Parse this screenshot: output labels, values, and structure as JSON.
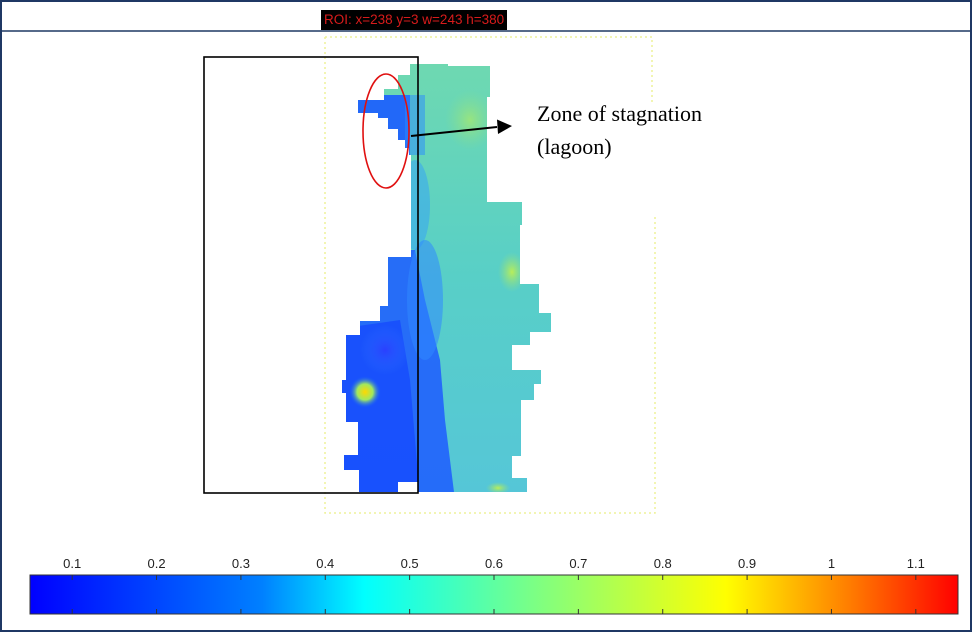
{
  "roi": {
    "label": "ROI: x=238 y=3 w=243 h=380",
    "label_color": "#d81b1b",
    "outline_color": "#eef29a"
  },
  "annotation": {
    "line1": "Zone of stagnation",
    "line2": "(lagoon)",
    "ellipse_color": "#e01010"
  },
  "colorbar": {
    "ticks": [
      "0.1",
      "0.2",
      "0.3",
      "0.4",
      "0.5",
      "0.6",
      "0.7",
      "0.8",
      "0.9",
      "1",
      "1.1"
    ],
    "tick_values": [
      0.1,
      0.2,
      0.3,
      0.4,
      0.5,
      0.6,
      0.7,
      0.8,
      0.9,
      1.0,
      1.1
    ],
    "min": 0.05,
    "max": 1.15,
    "colormap": [
      "#0000ff",
      "#0080ff",
      "#00ffff",
      "#80ff80",
      "#ffff00",
      "#ff8000",
      "#ff0000"
    ]
  },
  "colors": {
    "frame_border": "#1f3864",
    "plot_box": "#000000"
  }
}
